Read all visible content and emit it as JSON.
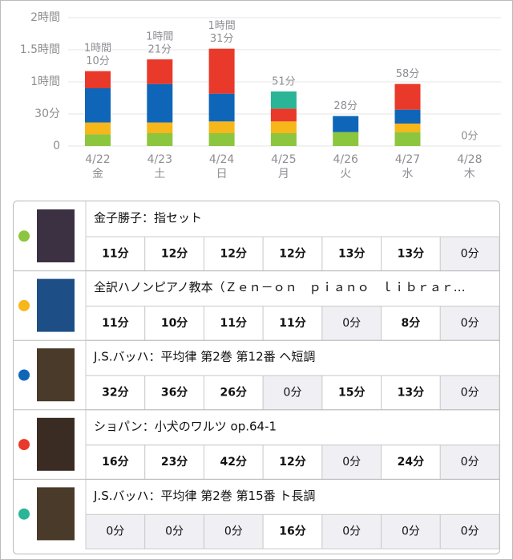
{
  "chart_data": {
    "type": "stacked-bar",
    "categories": [
      "4/22",
      "4/23",
      "4/24",
      "4/25",
      "4/26",
      "4/27",
      "4/28"
    ],
    "weekdays": [
      "金",
      "土",
      "日",
      "月",
      "火",
      "水",
      "木"
    ],
    "ylim": [
      0,
      120
    ],
    "yticks": [
      0,
      {
        "value": 30,
        "label": "30分"
      },
      {
        "value": 60,
        "label": "1時間"
      },
      {
        "value": 90,
        "label": "1.5時間"
      },
      {
        "value": 120,
        "label": "2時間"
      }
    ],
    "grid": true,
    "totals": [
      70,
      81,
      91,
      51,
      28,
      58,
      0
    ],
    "total_labels": [
      [
        "1時間",
        "10分"
      ],
      [
        "1時間",
        "21分"
      ],
      [
        "1時間",
        "31分"
      ],
      [
        "51分"
      ],
      [
        "28分"
      ],
      [
        "58分"
      ],
      [
        "0分"
      ]
    ],
    "series": [
      {
        "name": "金子勝子：指セット",
        "color": "#8cc63e",
        "values": [
          11,
          12,
          12,
          12,
          13,
          13,
          0
        ],
        "value_labels": [
          "11分",
          "12分",
          "12分",
          "12分",
          "13分",
          "13分",
          "0分"
        ]
      },
      {
        "name": "全訳ハノンピアノ教本（Ｚｅｎ－ｏｎ　ｐｉａｎｏ　ｌｉｂｒａｒ…",
        "color": "#f7b619",
        "values": [
          11,
          10,
          11,
          11,
          0,
          8,
          0
        ],
        "value_labels": [
          "11分",
          "10分",
          "11分",
          "11分",
          "0分",
          "8分",
          "0分"
        ]
      },
      {
        "name": "J.S.バッハ：平均律 第2巻 第12番 ヘ短調",
        "color": "#0f66b8",
        "values": [
          32,
          36,
          26,
          0,
          15,
          13,
          0
        ],
        "value_labels": [
          "32分",
          "36分",
          "26分",
          "0分",
          "15分",
          "13分",
          "0分"
        ]
      },
      {
        "name": "ショパン：小犬のワルツ op.64-1",
        "color": "#e8392a",
        "values": [
          16,
          23,
          42,
          12,
          0,
          24,
          0
        ],
        "value_labels": [
          "16分",
          "23分",
          "42分",
          "12分",
          "0分",
          "24分",
          "0分"
        ]
      },
      {
        "name": "J.S.バッハ：平均律 第2巻 第15番 ト長調",
        "color": "#2bb597",
        "values": [
          0,
          0,
          0,
          16,
          0,
          0,
          0
        ],
        "value_labels": [
          "0分",
          "0分",
          "0分",
          "16分",
          "0分",
          "0分",
          "0分"
        ]
      }
    ]
  }
}
